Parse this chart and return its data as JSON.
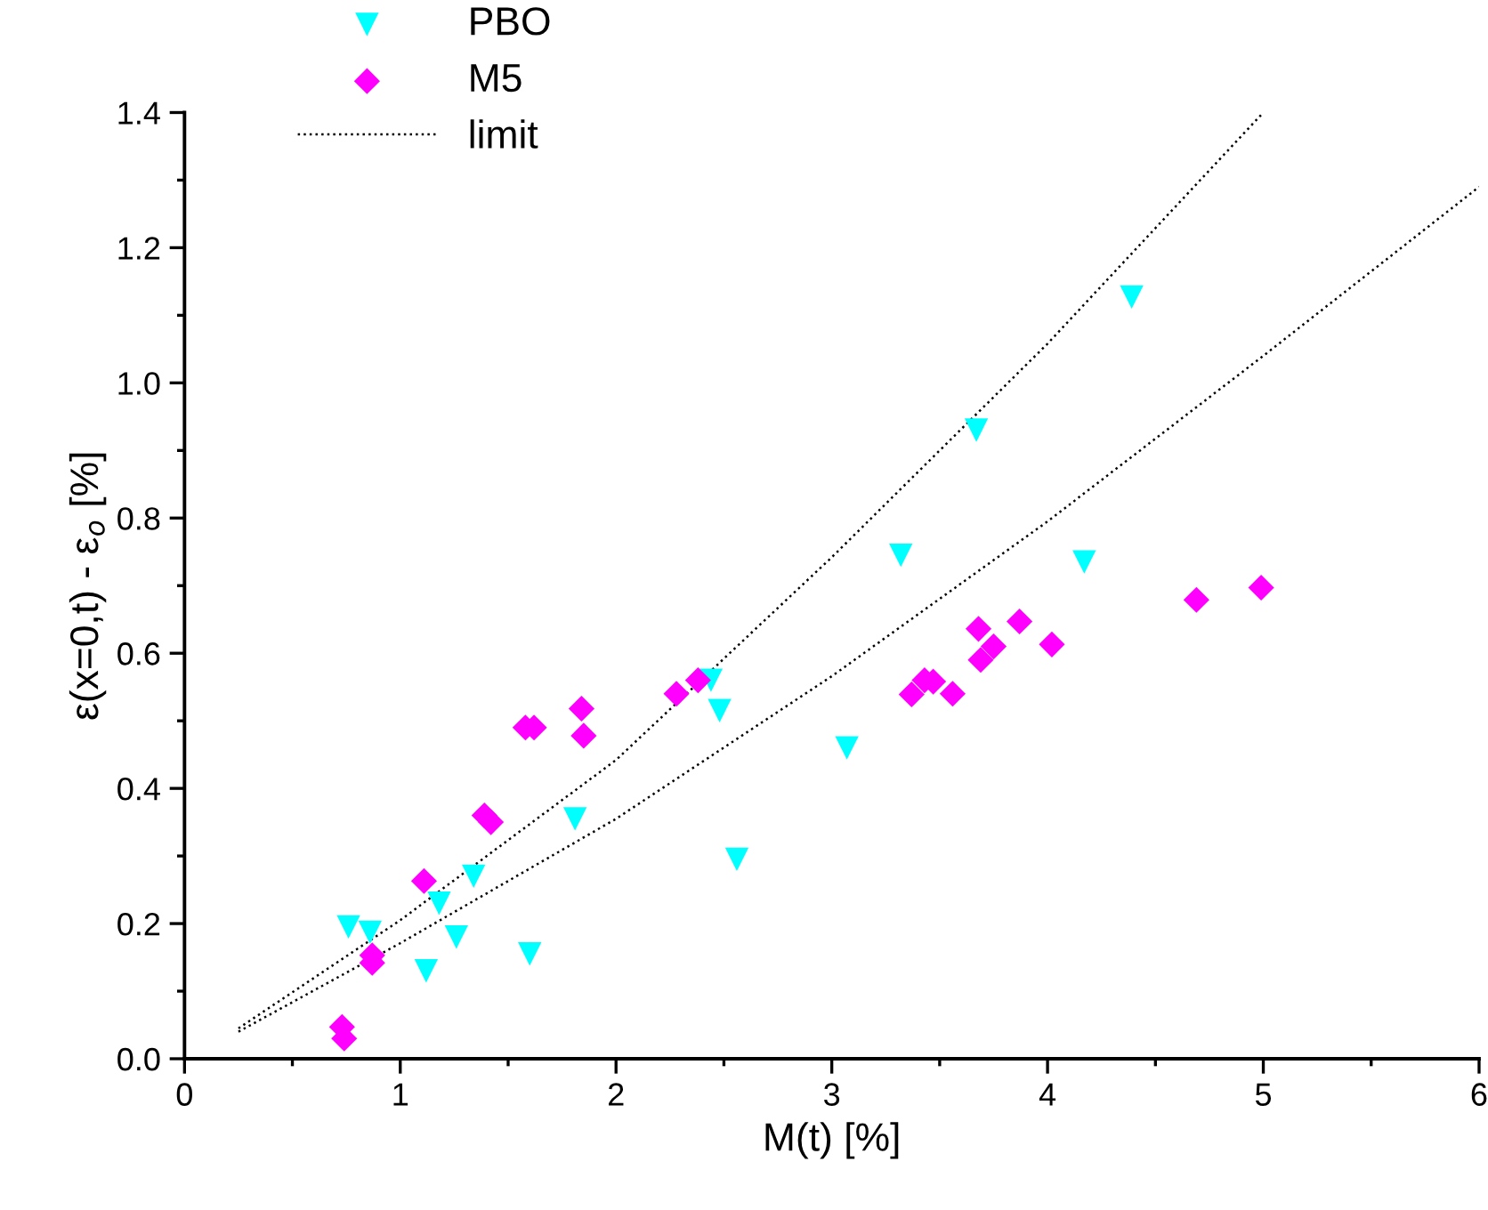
{
  "chart_data": {
    "type": "scatter",
    "xlabel": "M(t) [%]",
    "ylabel": "ε(x=0,t) - ε$_{o}$ [%]",
    "xlim": [
      0,
      6
    ],
    "xticks": [
      0,
      1,
      2,
      3,
      4,
      5,
      6
    ],
    "ylim": [
      0,
      1.4
    ],
    "yticks": [
      {
        "value": 0,
        "label": "0.0"
      },
      0.2,
      0.4,
      0.6,
      0.8,
      {
        "value": 1,
        "label": "1.0"
      },
      1.2,
      1.4
    ],
    "grid": false,
    "legend": "top left",
    "series": [
      {
        "name": "PBO",
        "marker": "triangle",
        "color": "#00ffff",
        "x": [
          0.76,
          0.86,
          1.18,
          1.26,
          1.12,
          1.34,
          1.6,
          1.81,
          2.44,
          2.48,
          2.56,
          3.07,
          3.32,
          3.67,
          4.17,
          4.39
        ],
        "values": [
          0.195,
          0.187,
          0.23,
          0.18,
          0.13,
          0.27,
          0.155,
          0.355,
          0.56,
          0.515,
          0.295,
          0.46,
          0.745,
          0.93,
          0.735,
          1.127
        ]
      },
      {
        "name": "M5",
        "marker": "diamond",
        "color": "#ff00ff",
        "x": [
          0.73,
          0.74,
          0.87,
          0.87,
          1.11,
          1.39,
          1.42,
          1.58,
          1.62,
          1.84,
          1.85,
          2.28,
          2.38,
          3.37,
          3.43,
          3.47,
          3.56,
          3.68,
          3.69,
          3.75,
          3.87,
          4.02,
          4.69,
          4.99
        ],
        "values": [
          0.047,
          0.03,
          0.153,
          0.142,
          0.263,
          0.36,
          0.35,
          0.49,
          0.49,
          0.518,
          0.478,
          0.54,
          0.56,
          0.539,
          0.56,
          0.558,
          0.54,
          0.636,
          0.59,
          0.61,
          0.647,
          0.613,
          0.679,
          0.697
        ]
      },
      {
        "name": "limit",
        "type": "line",
        "line_style": "dotted",
        "marker": "none",
        "color": "#000000",
        "x": [
          0.25,
          1,
          2,
          3,
          4,
          5
        ],
        "values": [
          0.045,
          0.205,
          0.442,
          0.742,
          1.058,
          1.4
        ]
      },
      {
        "type": "line",
        "line_style": "dotted",
        "marker": "none",
        "color": "#000000",
        "x": [
          0.25,
          1,
          2,
          3,
          4,
          5,
          6
        ],
        "values": [
          0.04,
          0.171,
          0.355,
          0.566,
          0.795,
          1.04,
          1.29
        ]
      }
    ]
  }
}
